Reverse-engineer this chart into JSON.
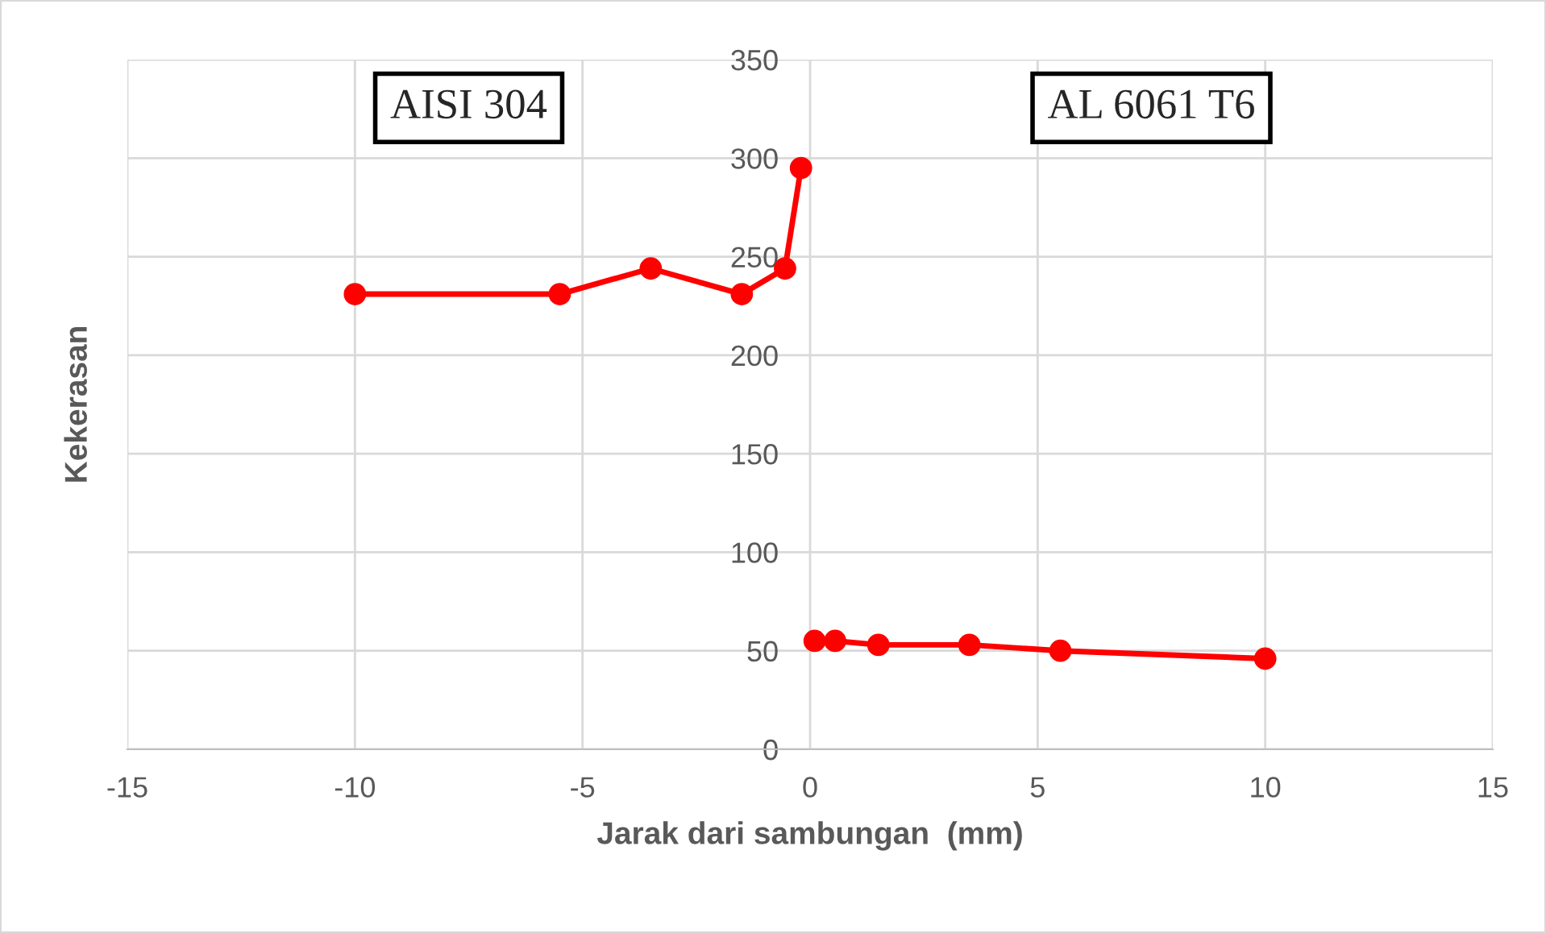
{
  "chart_data": {
    "type": "line",
    "xlabel": "Jarak dari sambungan  (mm)",
    "ylabel": "Kekerasan",
    "series": [
      {
        "color": "#ff0000",
        "x": [
          -10,
          -5.5,
          -3.5,
          -1.5,
          -0.55,
          -0.2
        ],
        "values": [
          231,
          231,
          244,
          231,
          244,
          295
        ]
      },
      {
        "color": "#ff0000",
        "x": [
          0.1,
          0.55,
          1.5,
          3.5,
          5.5,
          10
        ],
        "values": [
          55,
          55,
          53,
          53,
          50,
          46
        ]
      }
    ],
    "xlim": [
      -15,
      15
    ],
    "xticks": [
      -15,
      -10,
      -5,
      0,
      5,
      10,
      15
    ],
    "ylim": [
      0,
      350
    ],
    "yticks": [
      0,
      50,
      100,
      150,
      200,
      250,
      300,
      350
    ],
    "grid": true,
    "marker": "circle",
    "line_style": "solid",
    "annotations": [
      "AISI 304",
      "AL 6061 T6"
    ]
  }
}
